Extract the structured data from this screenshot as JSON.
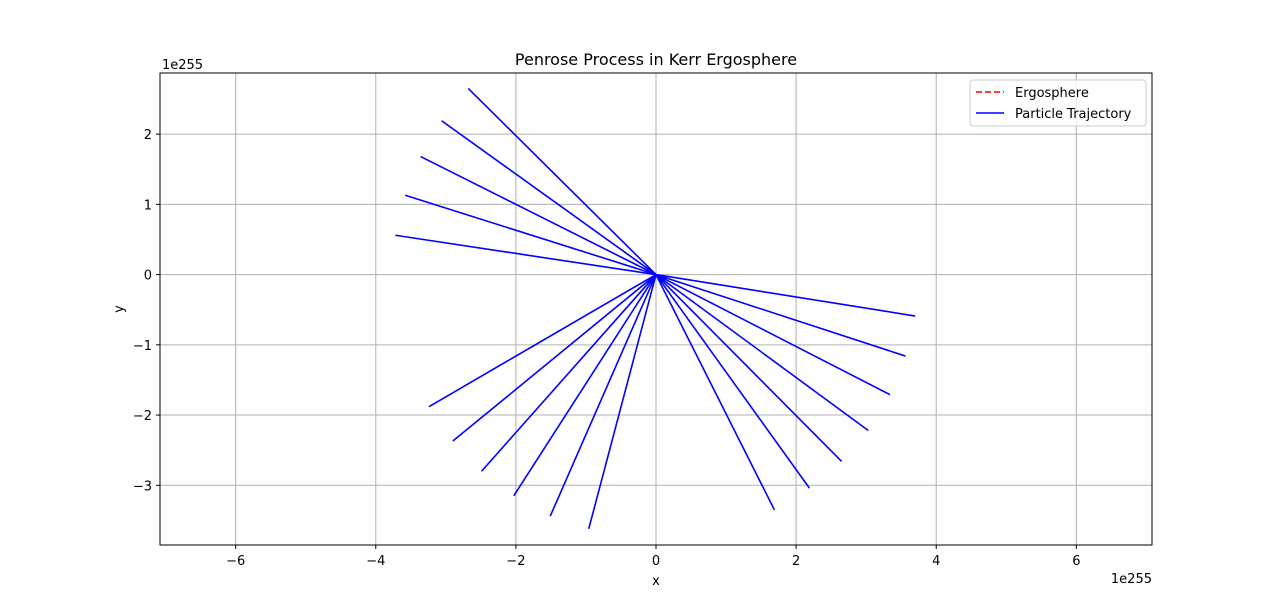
{
  "chart_data": {
    "type": "line",
    "title": "Penrose Process in Kerr Ergosphere",
    "xlabel": "x",
    "ylabel": "y",
    "x_offset_label": "1e255",
    "y_offset_label": "1e255",
    "xlim": [
      -7.08,
      7.08
    ],
    "ylim": [
      -3.85,
      2.87
    ],
    "xticks": [
      -6,
      -4,
      -2,
      0,
      2,
      4,
      6
    ],
    "yticks": [
      -3,
      -2,
      -1,
      0,
      1,
      2
    ],
    "xtick_labels": [
      "−6",
      "−4",
      "−2",
      "0",
      "2",
      "4",
      "6"
    ],
    "ytick_labels": [
      "−3",
      "−2",
      "−1",
      "0",
      "1",
      "2"
    ],
    "grid": true,
    "legend_position": "top-right",
    "series": [
      {
        "name": "Ergosphere",
        "color": "#ff0000",
        "style": "dashed",
        "x": [],
        "y": []
      },
      {
        "name": "Particle Trajectory",
        "color": "#0000ff",
        "style": "solid",
        "segments": [
          {
            "x": [
              0,
              -3.72
            ],
            "y": [
              0,
              0.56
            ]
          },
          {
            "x": [
              0,
              -3.58
            ],
            "y": [
              0,
              1.13
            ]
          },
          {
            "x": [
              0,
              -3.36
            ],
            "y": [
              0,
              1.68
            ]
          },
          {
            "x": [
              0,
              -3.06
            ],
            "y": [
              0,
              2.19
            ]
          },
          {
            "x": [
              0,
              -2.68
            ],
            "y": [
              0,
              2.65
            ]
          },
          {
            "x": [
              0,
              3.7
            ],
            "y": [
              0,
              -0.59
            ]
          },
          {
            "x": [
              0,
              3.56
            ],
            "y": [
              0,
              -1.16
            ]
          },
          {
            "x": [
              0,
              3.34
            ],
            "y": [
              0,
              -1.71
            ]
          },
          {
            "x": [
              0,
              3.03
            ],
            "y": [
              0,
              -2.22
            ]
          },
          {
            "x": [
              0,
              2.65
            ],
            "y": [
              0,
              -2.66
            ]
          },
          {
            "x": [
              0,
              2.19
            ],
            "y": [
              0,
              -3.04
            ]
          },
          {
            "x": [
              0,
              1.69
            ],
            "y": [
              0,
              -3.35
            ]
          },
          {
            "x": [
              0,
              -0.96
            ],
            "y": [
              0,
              -3.62
            ]
          },
          {
            "x": [
              0,
              -1.51
            ],
            "y": [
              0,
              -3.44
            ]
          },
          {
            "x": [
              0,
              -2.03
            ],
            "y": [
              0,
              -3.15
            ]
          },
          {
            "x": [
              0,
              -2.49
            ],
            "y": [
              0,
              -2.8
            ]
          },
          {
            "x": [
              0,
              -2.9
            ],
            "y": [
              0,
              -2.37
            ]
          },
          {
            "x": [
              0,
              -3.24
            ],
            "y": [
              0,
              -1.88
            ]
          }
        ]
      }
    ]
  }
}
